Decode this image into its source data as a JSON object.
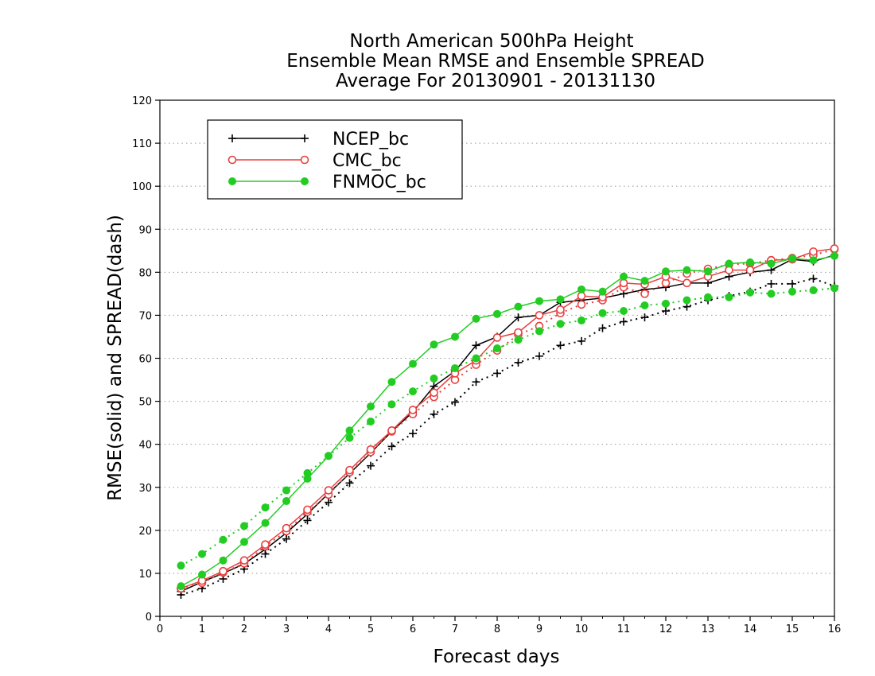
{
  "chart_data": {
    "type": "line",
    "title": [
      "North American 500hPa Height",
      "Ensemble Mean RMSE and Ensemble SPREAD",
      "Average For 20130901 - 20131130"
    ],
    "xlabel": "Forecast days",
    "ylabel": "RMSE(solid) and SPREAD(dash)",
    "xlim": [
      0,
      16
    ],
    "ylim": [
      0,
      120
    ],
    "xticks": [
      0,
      1,
      2,
      3,
      4,
      5,
      6,
      7,
      8,
      9,
      10,
      11,
      12,
      13,
      14,
      15,
      16
    ],
    "yticks": [
      0,
      10,
      20,
      30,
      40,
      50,
      60,
      70,
      80,
      90,
      100,
      110,
      120
    ],
    "grid": true,
    "legend_position": "top-left",
    "x": [
      0.5,
      1,
      1.5,
      2,
      2.5,
      3,
      3.5,
      4,
      4.5,
      5,
      5.5,
      6,
      6.5,
      7,
      7.5,
      8,
      8.5,
      9,
      9.5,
      10,
      10.5,
      11,
      11.5,
      12,
      12.5,
      13,
      13.5,
      14,
      14.5,
      15,
      15.5,
      16
    ],
    "series": [
      {
        "name": "NCEP_bc",
        "color": "#000000",
        "marker": "plus",
        "rmse": [
          5.8,
          8.0,
          10.0,
          12.2,
          15.6,
          19.4,
          23.8,
          28.6,
          33.2,
          38.0,
          43.0,
          47.5,
          53.5,
          57.0,
          63.0,
          65.0,
          69.5,
          70.0,
          73.0,
          73.5,
          74.0,
          75.0,
          76.0,
          76.5,
          77.5,
          77.5,
          79.0,
          80.0,
          80.5,
          83.0,
          82.5,
          84.0
        ],
        "spread": [
          5.0,
          6.5,
          8.7,
          11.0,
          14.5,
          18.0,
          22.3,
          26.5,
          31.0,
          35.0,
          39.5,
          42.5,
          47.0,
          49.8,
          54.5,
          56.5,
          59.0,
          60.5,
          63.0,
          64.0,
          67.0,
          68.5,
          69.5,
          71.0,
          72.0,
          73.5,
          74.5,
          75.5,
          77.3,
          77.3,
          78.5,
          76.8
        ]
      },
      {
        "name": "CMC_bc",
        "color": "#e84040",
        "marker": "open-circle",
        "rmse": [
          6.5,
          8.3,
          10.5,
          13.0,
          16.7,
          20.5,
          24.8,
          29.3,
          34.0,
          38.8,
          43.2,
          48.0,
          52.0,
          56.5,
          59.5,
          64.8,
          66.0,
          70.0,
          71.3,
          74.5,
          74.2,
          77.5,
          77.2,
          79.0,
          77.5,
          79.0,
          80.5,
          80.5,
          82.8,
          83.0,
          84.8,
          85.5
        ],
        "spread": [
          6.5,
          7.8,
          10.2,
          12.3,
          16.3,
          19.8,
          24.3,
          28.3,
          33.5,
          38.2,
          43.0,
          47.0,
          51.0,
          55.0,
          58.5,
          61.8,
          65.5,
          67.5,
          70.5,
          72.5,
          73.5,
          76.5,
          75.0,
          77.5,
          79.7,
          80.8,
          81.8,
          82.0,
          82.8,
          83.3,
          84.0,
          85.3
        ]
      },
      {
        "name": "FNMOC_bc",
        "color": "#22cc22",
        "marker": "filled-circle",
        "rmse": [
          7.0,
          9.7,
          13.0,
          17.3,
          21.7,
          26.8,
          32.0,
          37.3,
          43.2,
          48.8,
          54.5,
          58.7,
          63.2,
          65.0,
          69.2,
          70.3,
          72.0,
          73.3,
          73.7,
          76.0,
          75.5,
          79.0,
          78.0,
          80.2,
          80.5,
          80.2,
          82.0,
          82.3,
          82.0,
          83.2,
          82.8,
          83.8
        ],
        "spread": [
          11.8,
          14.5,
          17.8,
          21.0,
          25.3,
          29.3,
          33.3,
          37.3,
          41.5,
          45.3,
          49.3,
          52.3,
          55.3,
          57.7,
          60.0,
          62.3,
          64.3,
          66.3,
          68.0,
          68.8,
          70.5,
          71.0,
          72.3,
          72.7,
          73.5,
          74.2,
          74.2,
          75.3,
          75.0,
          75.5,
          75.8,
          76.3
        ]
      }
    ]
  }
}
